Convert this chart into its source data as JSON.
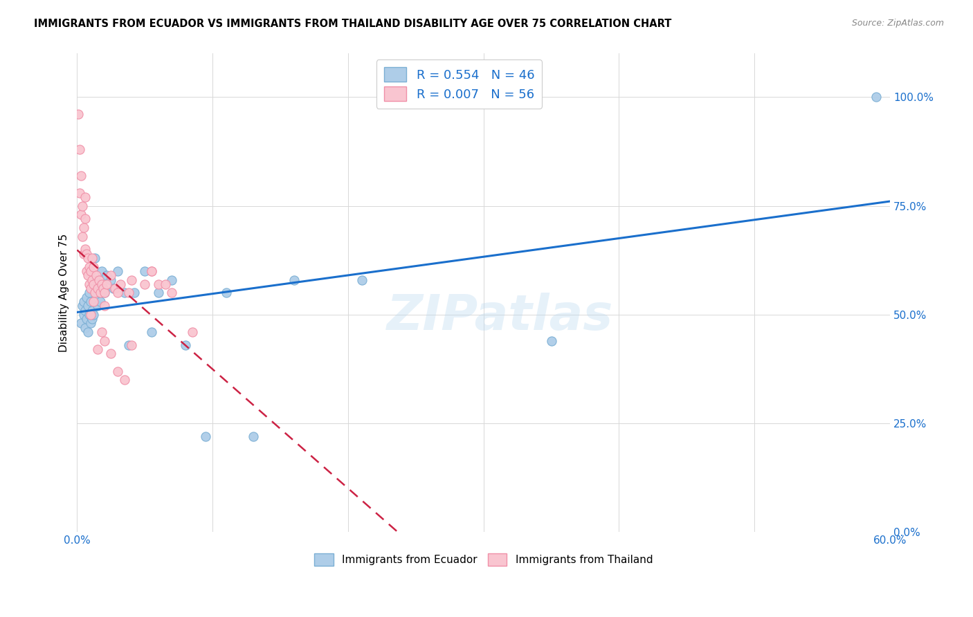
{
  "title": "IMMIGRANTS FROM ECUADOR VS IMMIGRANTS FROM THAILAND DISABILITY AGE OVER 75 CORRELATION CHART",
  "source": "Source: ZipAtlas.com",
  "ylabel": "Disability Age Over 75",
  "ytick_labels": [
    "0.0%",
    "25.0%",
    "50.0%",
    "75.0%",
    "100.0%"
  ],
  "ytick_values": [
    0.0,
    0.25,
    0.5,
    0.75,
    1.0
  ],
  "xlim": [
    0.0,
    0.6
  ],
  "ylim": [
    0.0,
    1.1
  ],
  "ecuador_color_edge": "#7bafd4",
  "ecuador_color_fill": "#aecde8",
  "thailand_color_edge": "#f090a8",
  "thailand_color_fill": "#f9c5d0",
  "line_ecuador_color": "#1a6fcc",
  "line_thailand_color": "#cc2244",
  "legend_ecuador_label": "R = 0.554   N = 46",
  "legend_thailand_label": "R = 0.007   N = 56",
  "bottom_legend_ecuador": "Immigrants from Ecuador",
  "bottom_legend_thailand": "Immigrants from Thailand",
  "grid_color": "#d8d8d8",
  "background_color": "#ffffff",
  "ecuador_x": [
    0.003,
    0.004,
    0.005,
    0.005,
    0.006,
    0.006,
    0.007,
    0.007,
    0.008,
    0.008,
    0.009,
    0.009,
    0.01,
    0.01,
    0.011,
    0.011,
    0.012,
    0.012,
    0.013,
    0.014,
    0.015,
    0.015,
    0.016,
    0.017,
    0.018,
    0.019,
    0.02,
    0.022,
    0.025,
    0.027,
    0.03,
    0.035,
    0.038,
    0.042,
    0.05,
    0.055,
    0.06,
    0.07,
    0.08,
    0.095,
    0.11,
    0.13,
    0.16,
    0.21,
    0.35,
    0.59
  ],
  "ecuador_y": [
    0.48,
    0.52,
    0.5,
    0.53,
    0.47,
    0.51,
    0.49,
    0.54,
    0.46,
    0.52,
    0.5,
    0.55,
    0.48,
    0.53,
    0.51,
    0.49,
    0.56,
    0.5,
    0.63,
    0.58,
    0.52,
    0.55,
    0.57,
    0.53,
    0.6,
    0.56,
    0.55,
    0.59,
    0.58,
    0.56,
    0.6,
    0.55,
    0.43,
    0.55,
    0.6,
    0.46,
    0.55,
    0.58,
    0.43,
    0.22,
    0.55,
    0.22,
    0.58,
    0.58,
    0.44,
    1.0
  ],
  "thailand_x": [
    0.001,
    0.002,
    0.002,
    0.003,
    0.003,
    0.004,
    0.004,
    0.005,
    0.005,
    0.006,
    0.006,
    0.007,
    0.007,
    0.008,
    0.008,
    0.009,
    0.009,
    0.01,
    0.01,
    0.011,
    0.011,
    0.012,
    0.012,
    0.013,
    0.014,
    0.015,
    0.016,
    0.017,
    0.018,
    0.019,
    0.02,
    0.022,
    0.025,
    0.028,
    0.032,
    0.038,
    0.04,
    0.055,
    0.06,
    0.07,
    0.015,
    0.018,
    0.02,
    0.025,
    0.03,
    0.035,
    0.04,
    0.055,
    0.065,
    0.085,
    0.01,
    0.012,
    0.006,
    0.02,
    0.03,
    0.05
  ],
  "thailand_y": [
    0.96,
    0.88,
    0.78,
    0.82,
    0.73,
    0.68,
    0.75,
    0.64,
    0.7,
    0.65,
    0.72,
    0.6,
    0.64,
    0.59,
    0.63,
    0.57,
    0.61,
    0.56,
    0.6,
    0.58,
    0.63,
    0.57,
    0.61,
    0.55,
    0.59,
    0.56,
    0.58,
    0.55,
    0.57,
    0.56,
    0.55,
    0.57,
    0.59,
    0.56,
    0.57,
    0.55,
    0.58,
    0.6,
    0.57,
    0.55,
    0.42,
    0.46,
    0.44,
    0.41,
    0.37,
    0.35,
    0.43,
    0.6,
    0.57,
    0.46,
    0.5,
    0.53,
    0.77,
    0.52,
    0.55,
    0.57
  ]
}
